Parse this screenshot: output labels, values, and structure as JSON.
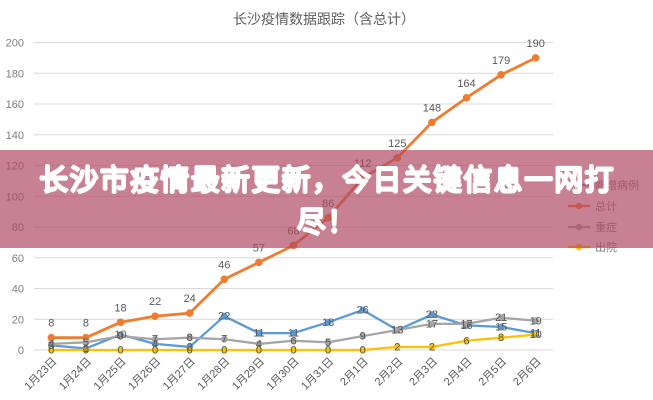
{
  "banner": {
    "text": "长沙市疫情最新更新，今日关键信息一网打尽！",
    "bg_color": "#ac465e",
    "text_color": "#ffffff"
  },
  "chart_data": {
    "type": "line",
    "title": "长沙疫情数据跟踪（含总计）",
    "categories": [
      "1月23日",
      "1月24日",
      "1月25日",
      "1月26日",
      "1月27日",
      "1月28日",
      "1月29日",
      "1月30日",
      "1月31日",
      "2月1日",
      "2月2日",
      "2月3日",
      "2月4日",
      "2月5日",
      "2月6日"
    ],
    "series": [
      {
        "name": "新增病例",
        "color": "#5b9bd5",
        "values": [
          3,
          1,
          10,
          4,
          2,
          22,
          11,
          11,
          18,
          26,
          13,
          23,
          16,
          15,
          11
        ]
      },
      {
        "name": "总计",
        "color": "#ed7d31",
        "values": [
          8,
          8,
          18,
          22,
          24,
          46,
          57,
          68,
          86,
          112,
          125,
          148,
          164,
          179,
          190
        ]
      },
      {
        "name": "重症",
        "color": "#a5a5a5",
        "values": [
          4,
          5,
          9,
          7,
          8,
          7,
          4,
          6,
          5,
          9,
          13,
          17,
          17,
          21,
          19
        ]
      },
      {
        "name": "出院",
        "color": "#ffc000",
        "values": [
          0,
          0,
          0,
          0,
          0,
          0,
          0,
          0,
          0,
          0,
          2,
          2,
          6,
          8,
          10
        ]
      }
    ],
    "ylim": [
      0,
      200
    ],
    "ytick_step": 20,
    "grid": true,
    "legend_position": "right",
    "data_labels": true
  }
}
